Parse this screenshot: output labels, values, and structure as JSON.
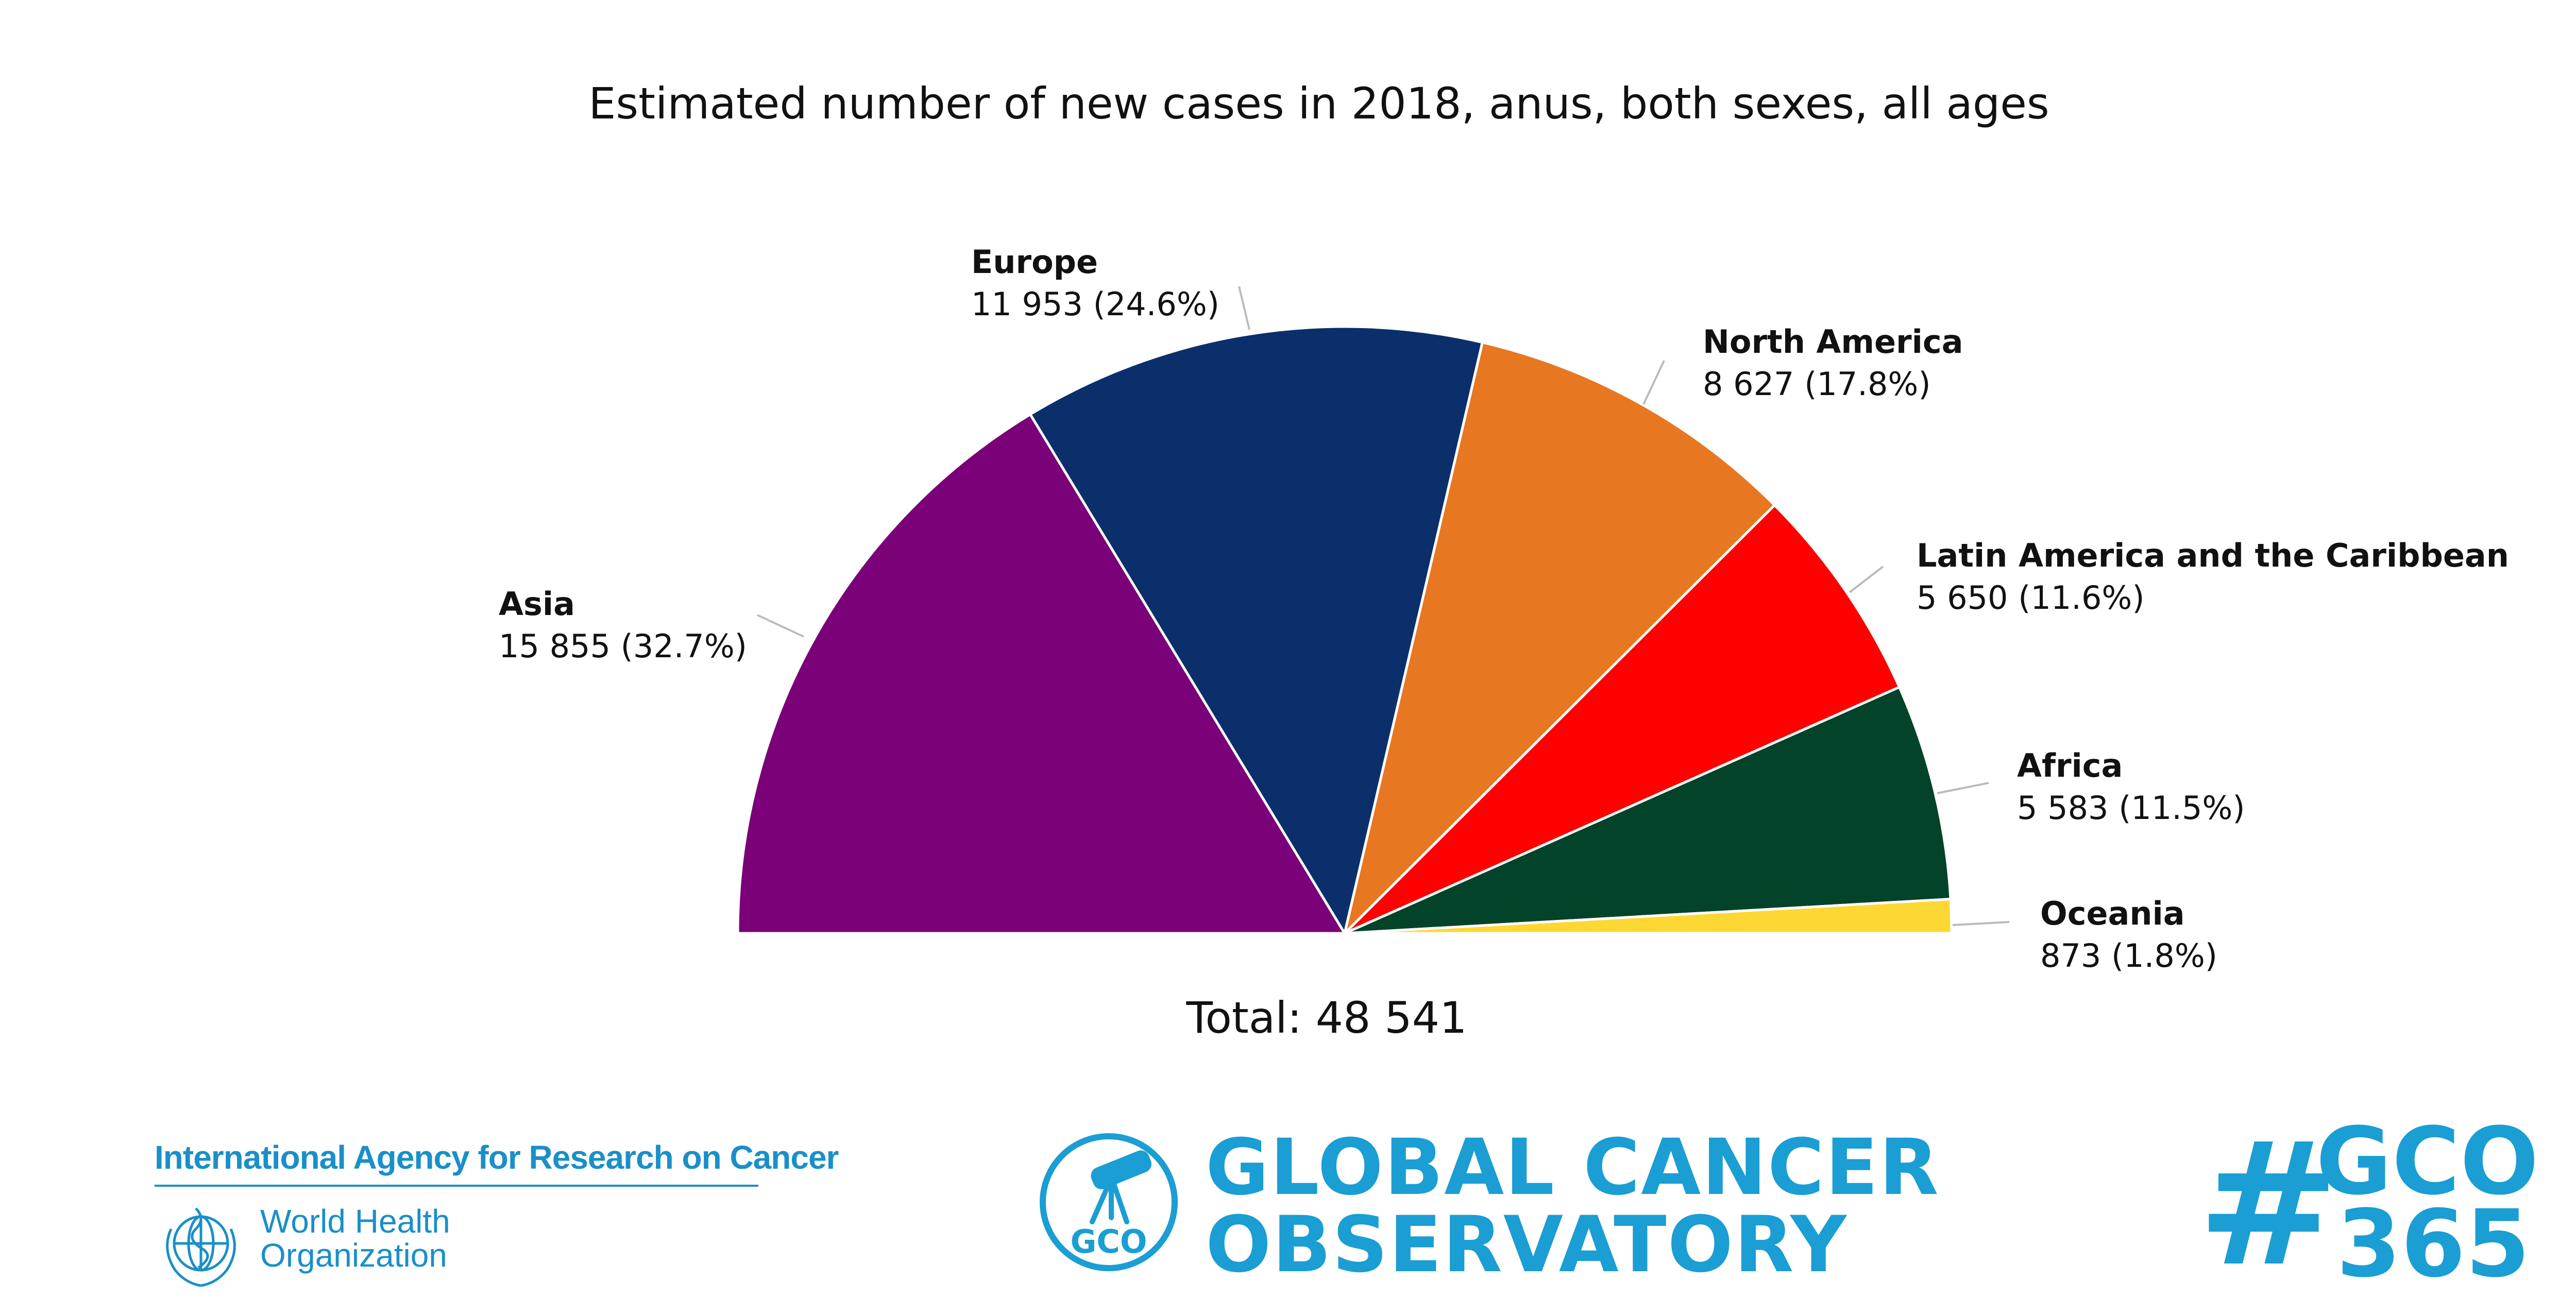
{
  "chart_data": {
    "type": "pie",
    "variant": "semicircle",
    "title": "Estimated number of new cases in 2018, anus, both sexes, all ages",
    "total_label": "Total: 48 541",
    "total": 48541,
    "slices": [
      {
        "name": "Asia",
        "value": 15855,
        "value_label": "15 855 (32.7%)",
        "color": "#7a0177"
      },
      {
        "name": "Europe",
        "value": 11953,
        "value_label": "11 953 (24.6%)",
        "color": "#0b2f6b"
      },
      {
        "name": "North America",
        "value": 8627,
        "value_label": "8 627 (17.8%)",
        "color": "#e87722"
      },
      {
        "name": "Latin America and the Caribbean",
        "value": 5650,
        "value_label": "5 650 (11.6%)",
        "color": "#ff0000"
      },
      {
        "name": "Africa",
        "value": 5583,
        "value_label": "5 583 (11.5%)",
        "color": "#03432a"
      },
      {
        "name": "Oceania",
        "value": 873,
        "value_label": "873 (1.8%)",
        "color": "#fdd835"
      }
    ]
  },
  "footer": {
    "iarc": "International Agency for Research on Cancer",
    "who_line1": "World Health",
    "who_line2": "Organization",
    "gco_badge": "GCO",
    "gco_line1": "GLOBAL CANCER",
    "gco_line2": "OBSERVATORY",
    "hashtag_symbol": "#",
    "hashtag_line1": "GCO",
    "hashtag_line2": "365"
  }
}
